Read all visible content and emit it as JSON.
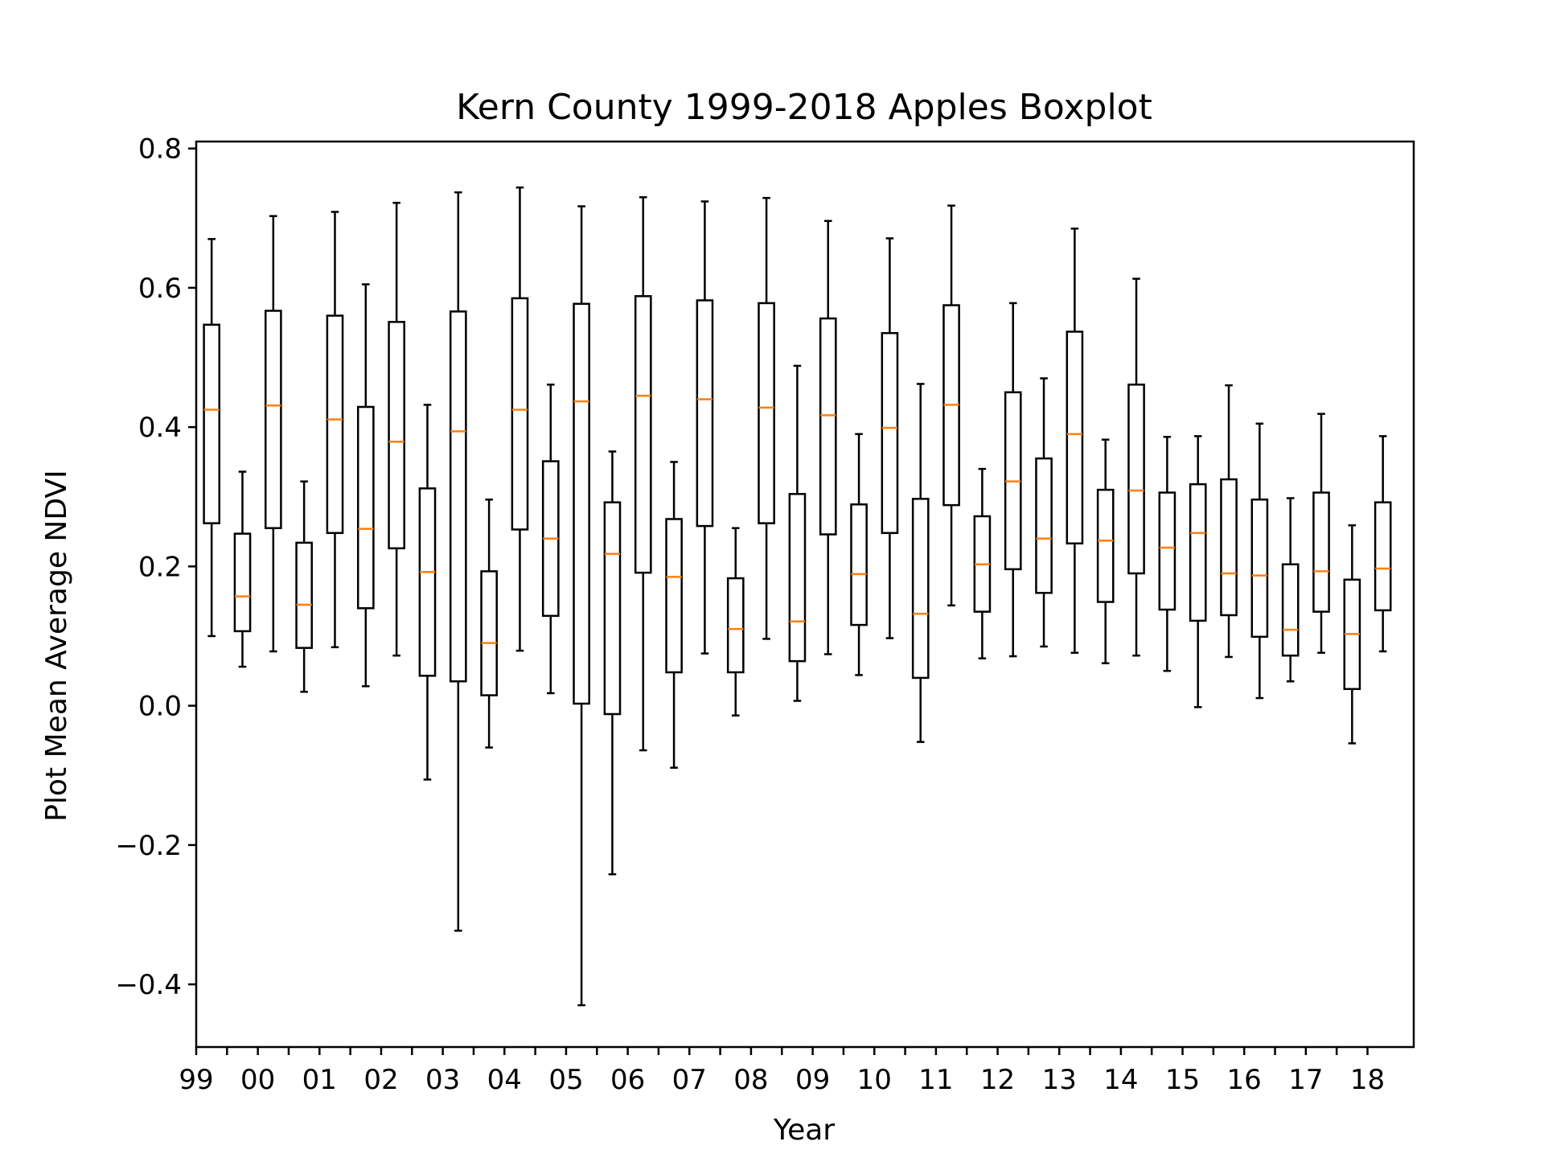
{
  "chart_data": {
    "type": "boxplot",
    "title": "Kern County 1999-2018 Apples Boxplot",
    "xlabel": "Year",
    "ylabel": "Plot Mean Average NDVI",
    "ylim": [
      -0.49,
      0.81
    ],
    "yticks": [
      -0.4,
      -0.2,
      0.0,
      0.2,
      0.4,
      0.6,
      0.8
    ],
    "ytick_labels": [
      "−0.4",
      "−0.2",
      "0.0",
      "0.2",
      "0.4",
      "0.6",
      "0.8"
    ],
    "xtick_labels": [
      "99",
      "00",
      "01",
      "02",
      "03",
      "04",
      "05",
      "06",
      "07",
      "08",
      "09",
      "10",
      "11",
      "12",
      "13",
      "14",
      "15",
      "16",
      "17",
      "18"
    ],
    "grid": false,
    "colors": {
      "box": "#000000",
      "median": "#ff7f0e",
      "background": "#ffffff"
    },
    "boxes": [
      {
        "min": 0.1,
        "q1": 0.262,
        "median": 0.425,
        "q3": 0.547,
        "max": 0.67
      },
      {
        "min": 0.056,
        "q1": 0.107,
        "median": 0.157,
        "q3": 0.247,
        "max": 0.336
      },
      {
        "min": 0.078,
        "q1": 0.255,
        "median": 0.431,
        "q3": 0.567,
        "max": 0.703
      },
      {
        "min": 0.02,
        "q1": 0.083,
        "median": 0.145,
        "q3": 0.234,
        "max": 0.322
      },
      {
        "min": 0.084,
        "q1": 0.248,
        "median": 0.411,
        "q3": 0.56,
        "max": 0.709
      },
      {
        "min": 0.028,
        "q1": 0.14,
        "median": 0.254,
        "q3": 0.429,
        "max": 0.605
      },
      {
        "min": 0.072,
        "q1": 0.226,
        "median": 0.379,
        "q3": 0.551,
        "max": 0.722
      },
      {
        "min": -0.106,
        "q1": 0.043,
        "median": 0.192,
        "q3": 0.312,
        "max": 0.432
      },
      {
        "min": -0.323,
        "q1": 0.035,
        "median": 0.394,
        "q3": 0.566,
        "max": 0.737
      },
      {
        "min": -0.06,
        "q1": 0.015,
        "median": 0.09,
        "q3": 0.193,
        "max": 0.296
      },
      {
        "min": 0.079,
        "q1": 0.253,
        "median": 0.425,
        "q3": 0.585,
        "max": 0.744
      },
      {
        "min": 0.018,
        "q1": 0.129,
        "median": 0.24,
        "q3": 0.351,
        "max": 0.461
      },
      {
        "min": -0.43,
        "q1": 0.003,
        "median": 0.437,
        "q3": 0.577,
        "max": 0.717
      },
      {
        "min": -0.242,
        "q1": -0.012,
        "median": 0.218,
        "q3": 0.292,
        "max": 0.365
      },
      {
        "min": -0.064,
        "q1": 0.191,
        "median": 0.445,
        "q3": 0.588,
        "max": 0.73
      },
      {
        "min": -0.089,
        "q1": 0.048,
        "median": 0.185,
        "q3": 0.268,
        "max": 0.35
      },
      {
        "min": 0.075,
        "q1": 0.258,
        "median": 0.44,
        "q3": 0.582,
        "max": 0.724
      },
      {
        "min": -0.014,
        "q1": 0.048,
        "median": 0.11,
        "q3": 0.183,
        "max": 0.255
      },
      {
        "min": 0.096,
        "q1": 0.262,
        "median": 0.428,
        "q3": 0.578,
        "max": 0.729
      },
      {
        "min": 0.007,
        "q1": 0.064,
        "median": 0.121,
        "q3": 0.304,
        "max": 0.488
      },
      {
        "min": 0.074,
        "q1": 0.246,
        "median": 0.417,
        "q3": 0.556,
        "max": 0.696
      },
      {
        "min": 0.044,
        "q1": 0.116,
        "median": 0.189,
        "q3": 0.289,
        "max": 0.39
      },
      {
        "min": 0.097,
        "q1": 0.248,
        "median": 0.399,
        "q3": 0.535,
        "max": 0.671
      },
      {
        "min": -0.052,
        "q1": 0.04,
        "median": 0.132,
        "q3": 0.297,
        "max": 0.462
      },
      {
        "min": 0.144,
        "q1": 0.288,
        "median": 0.432,
        "q3": 0.575,
        "max": 0.718
      },
      {
        "min": 0.068,
        "q1": 0.135,
        "median": 0.203,
        "q3": 0.272,
        "max": 0.34
      },
      {
        "min": 0.071,
        "q1": 0.196,
        "median": 0.322,
        "q3": 0.45,
        "max": 0.578
      },
      {
        "min": 0.085,
        "q1": 0.162,
        "median": 0.24,
        "q3": 0.355,
        "max": 0.47
      },
      {
        "min": 0.076,
        "q1": 0.233,
        "median": 0.39,
        "q3": 0.537,
        "max": 0.685
      },
      {
        "min": 0.061,
        "q1": 0.149,
        "median": 0.237,
        "q3": 0.31,
        "max": 0.382
      },
      {
        "min": 0.072,
        "q1": 0.19,
        "median": 0.309,
        "q3": 0.461,
        "max": 0.613
      },
      {
        "min": 0.05,
        "q1": 0.138,
        "median": 0.227,
        "q3": 0.306,
        "max": 0.386
      },
      {
        "min": -0.002,
        "q1": 0.122,
        "median": 0.248,
        "q3": 0.318,
        "max": 0.387
      },
      {
        "min": 0.07,
        "q1": 0.13,
        "median": 0.19,
        "q3": 0.325,
        "max": 0.46
      },
      {
        "min": 0.011,
        "q1": 0.099,
        "median": 0.187,
        "q3": 0.296,
        "max": 0.405
      },
      {
        "min": 0.035,
        "q1": 0.072,
        "median": 0.109,
        "q3": 0.203,
        "max": 0.298
      },
      {
        "min": 0.076,
        "q1": 0.135,
        "median": 0.193,
        "q3": 0.306,
        "max": 0.419
      },
      {
        "min": -0.054,
        "q1": 0.024,
        "median": 0.103,
        "q3": 0.181,
        "max": 0.259
      },
      {
        "min": 0.078,
        "q1": 0.137,
        "median": 0.197,
        "q3": 0.292,
        "max": 0.387
      }
    ]
  }
}
